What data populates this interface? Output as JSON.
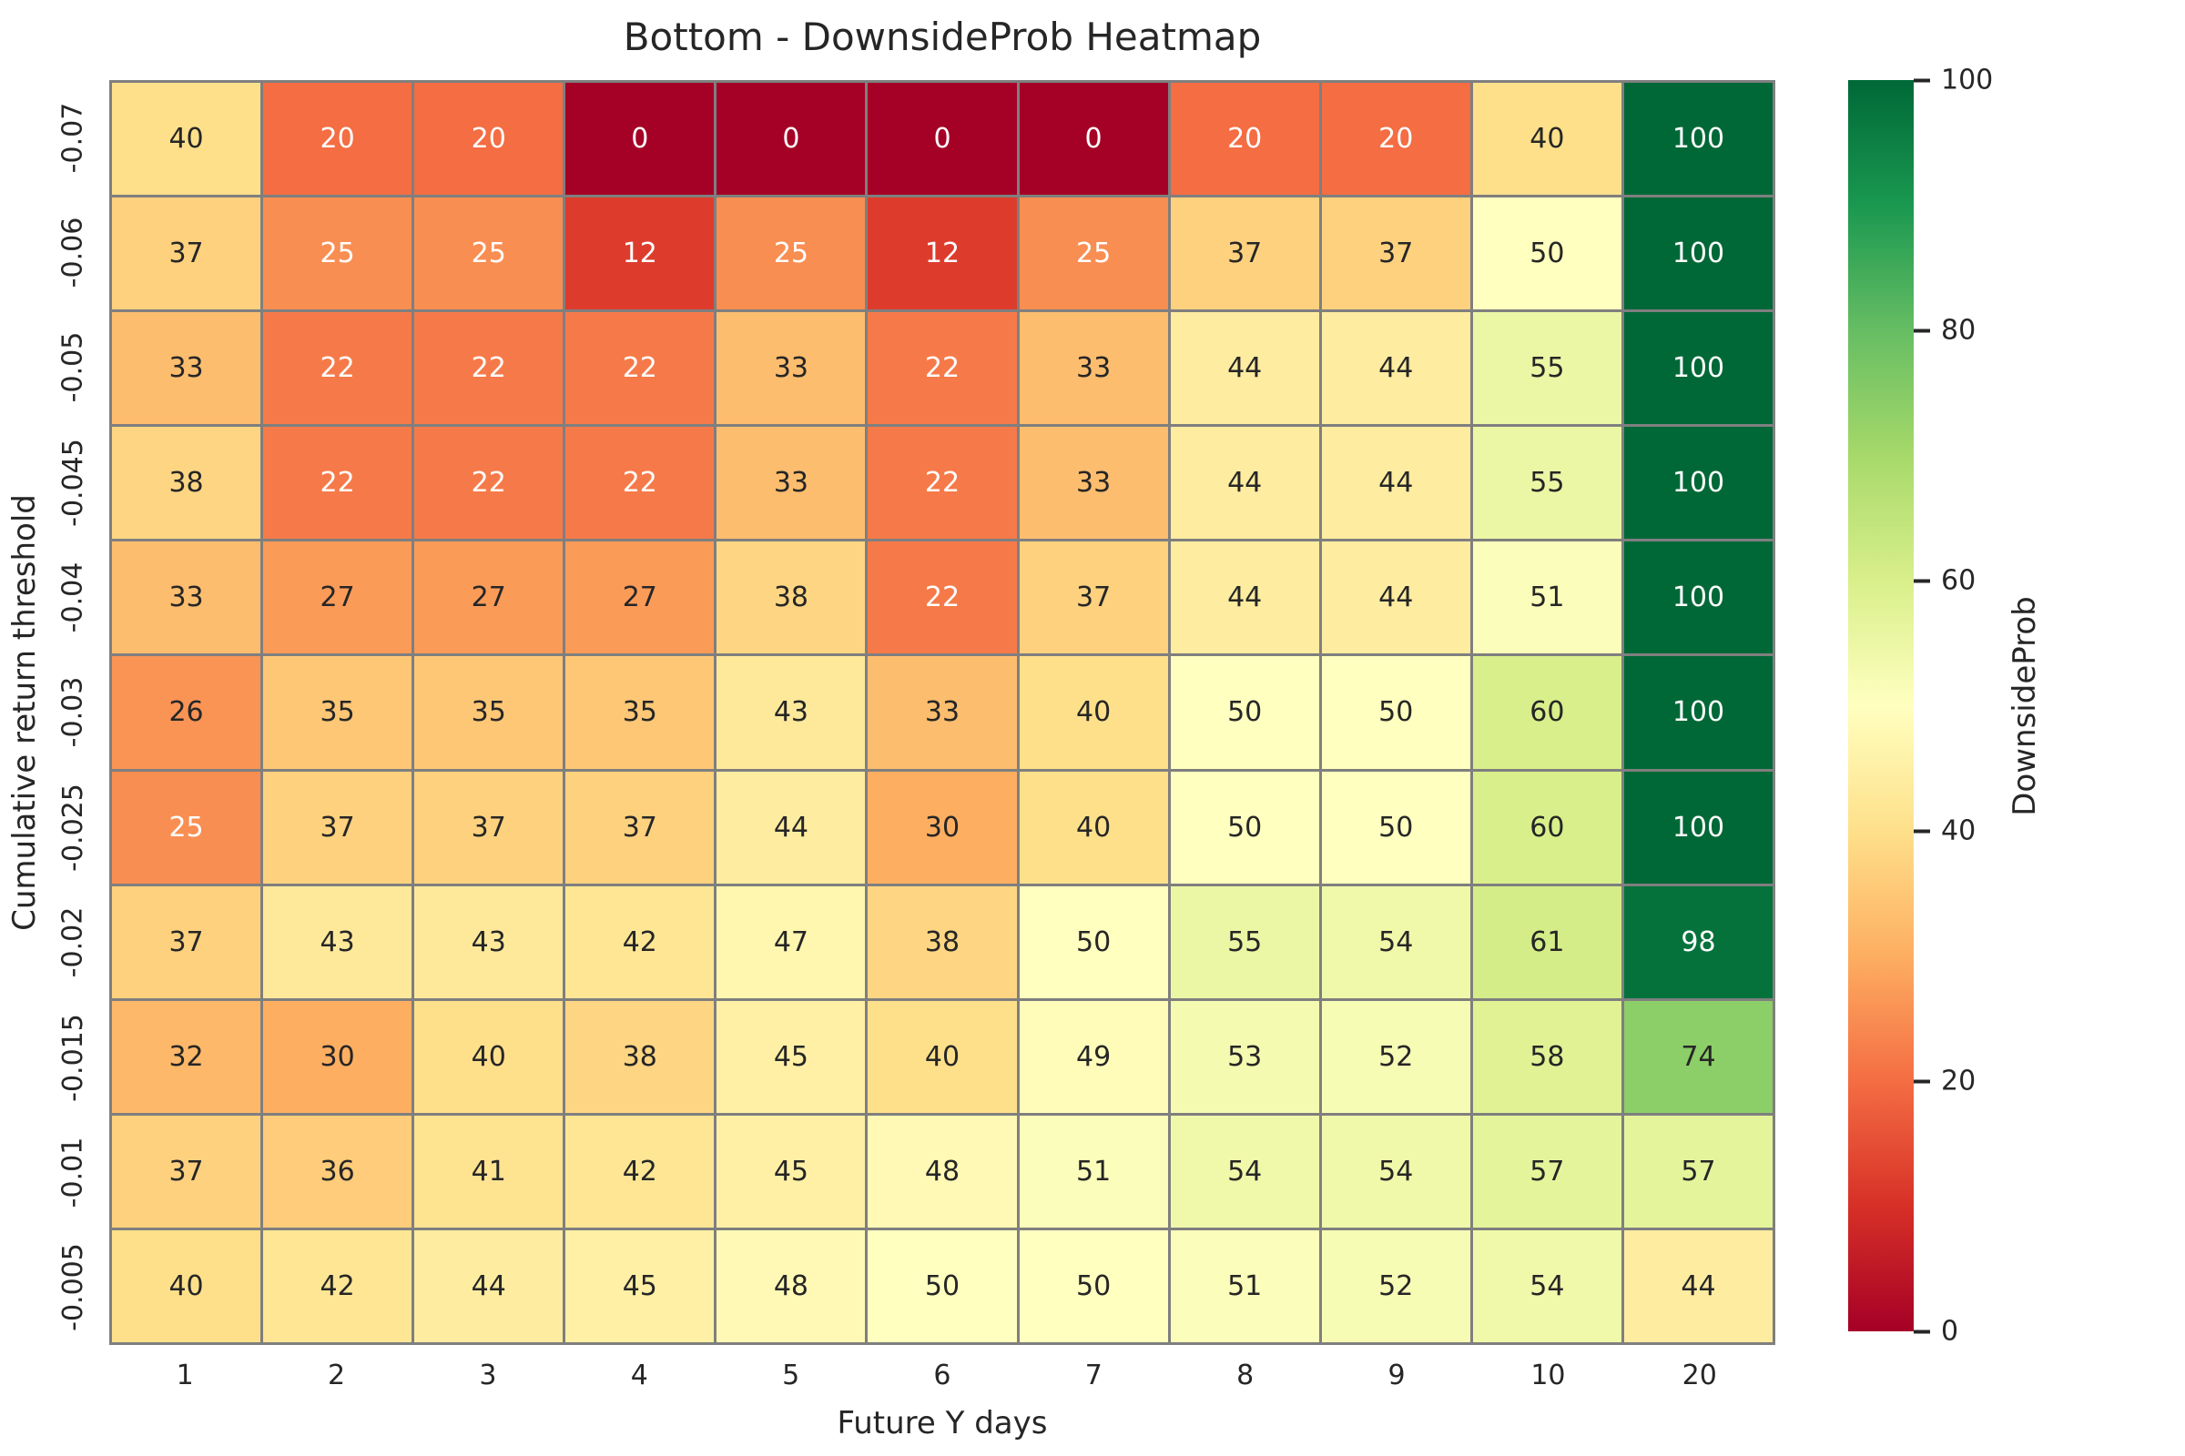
{
  "figure": {
    "background": "#ffffff",
    "text_color": "#262626"
  },
  "chart_data": {
    "type": "heatmap",
    "title": "Bottom - DownsideProb Heatmap",
    "xlabel": "Future Y days",
    "ylabel": "Cumulative return threshold",
    "x_categories": [
      "1",
      "2",
      "3",
      "4",
      "5",
      "6",
      "7",
      "8",
      "9",
      "10",
      "20"
    ],
    "y_categories": [
      "-0.07",
      "-0.06",
      "-0.05",
      "-0.045",
      "-0.04",
      "-0.03",
      "-0.025",
      "-0.02",
      "-0.015",
      "-0.01",
      "-0.005"
    ],
    "values": [
      [
        40,
        20,
        20,
        0,
        0,
        0,
        0,
        20,
        20,
        40,
        100
      ],
      [
        37,
        25,
        25,
        12,
        25,
        12,
        25,
        37,
        37,
        50,
        100
      ],
      [
        33,
        22,
        22,
        22,
        33,
        22,
        33,
        44,
        44,
        55,
        100
      ],
      [
        38,
        22,
        22,
        22,
        33,
        22,
        33,
        44,
        44,
        55,
        100
      ],
      [
        33,
        27,
        27,
        27,
        38,
        22,
        37,
        44,
        44,
        51,
        100
      ],
      [
        26,
        35,
        35,
        35,
        43,
        33,
        40,
        50,
        50,
        60,
        100
      ],
      [
        25,
        37,
        37,
        37,
        44,
        30,
        40,
        50,
        50,
        60,
        100
      ],
      [
        37,
        43,
        43,
        42,
        47,
        38,
        50,
        55,
        54,
        61,
        98
      ],
      [
        32,
        30,
        40,
        38,
        45,
        40,
        49,
        53,
        52,
        58,
        74
      ],
      [
        37,
        36,
        41,
        42,
        45,
        48,
        51,
        54,
        54,
        57,
        57
      ],
      [
        40,
        42,
        44,
        45,
        48,
        50,
        50,
        51,
        52,
        54,
        44
      ]
    ],
    "vmin": 0,
    "vmax": 100,
    "grid_on": true,
    "grid_line_color": "#7f7f7f",
    "legend_position": "right-colorbar",
    "colormap": {
      "name": "RdYlGn",
      "stops": [
        "#a50026",
        "#d73027",
        "#f46d43",
        "#fdae61",
        "#fee08b",
        "#ffffbf",
        "#d9ef8b",
        "#a6d96a",
        "#66bd63",
        "#1a9850",
        "#006837"
      ]
    },
    "colorbar": {
      "label": "DownsideProb",
      "tick_labels": [
        "100",
        "80",
        "60",
        "40",
        "20",
        "0"
      ],
      "min": 0,
      "max": 100
    }
  }
}
